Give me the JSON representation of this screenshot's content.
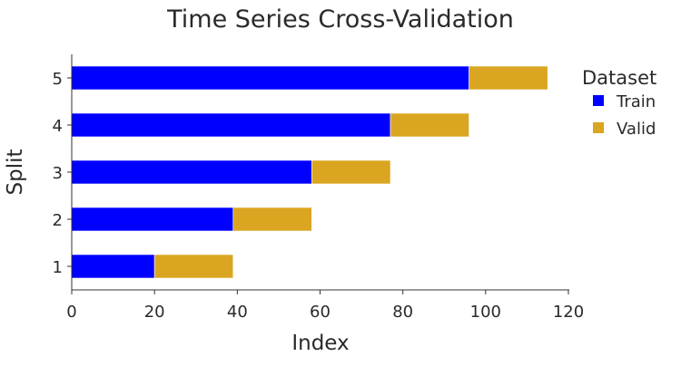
{
  "chart_data": {
    "type": "bar",
    "orientation": "horizontal",
    "stacked": true,
    "title": "Time Series Cross-Validation",
    "xlabel": "Index",
    "ylabel": "Split",
    "xlim": [
      0,
      120
    ],
    "xticks": [
      0,
      20,
      40,
      60,
      80,
      100,
      120
    ],
    "categories": [
      "1",
      "2",
      "3",
      "4",
      "5"
    ],
    "grid": false,
    "legend": {
      "title": "Dataset",
      "placement": "top-right outside"
    },
    "series": [
      {
        "name": "Train",
        "color": "#0000ff",
        "segments": [
          {
            "split": "1",
            "start": 0,
            "end": 20
          },
          {
            "split": "2",
            "start": 0,
            "end": 39
          },
          {
            "split": "3",
            "start": 0,
            "end": 58
          },
          {
            "split": "4",
            "start": 0,
            "end": 77
          },
          {
            "split": "5",
            "start": 0,
            "end": 96
          }
        ]
      },
      {
        "name": "Valid",
        "color": "#daa520",
        "segments": [
          {
            "split": "1",
            "start": 20,
            "end": 39
          },
          {
            "split": "2",
            "start": 39,
            "end": 58
          },
          {
            "split": "3",
            "start": 58,
            "end": 77
          },
          {
            "split": "4",
            "start": 77,
            "end": 96
          },
          {
            "split": "5",
            "start": 96,
            "end": 115
          }
        ]
      }
    ]
  }
}
